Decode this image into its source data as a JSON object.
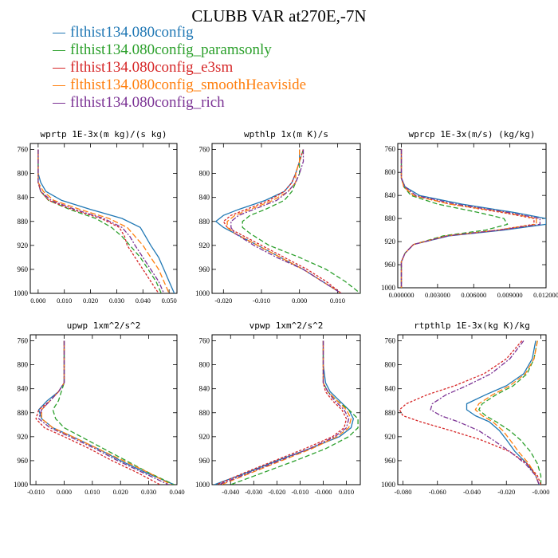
{
  "page": {
    "title": "CLUBB VAR at270E,-7N"
  },
  "legend": [
    {
      "name": "flthist134.080config",
      "color": "#1f77b4",
      "dash": ""
    },
    {
      "name": "flthist134.080config_paramsonly",
      "color": "#2ca02c",
      "dash": "6,3"
    },
    {
      "name": "flthist134.080config_e3sm",
      "color": "#d62728",
      "dash": "3,2"
    },
    {
      "name": "flthist134.080config_smoothHeaviside",
      "color": "#ff7f0e",
      "dash": "7,3"
    },
    {
      "name": "flthist134.080config_rich",
      "color": "#7b3294",
      "dash": "6,2,2,2"
    }
  ],
  "chart_data": [
    {
      "type": "line",
      "title": "wprtp  1E-3x(m kg)/(s kg)",
      "xlim": [
        -0.003,
        0.053
      ],
      "ylim": [
        1000,
        750
      ],
      "xticks": [
        0.0,
        0.01,
        0.02,
        0.03,
        0.04,
        0.05
      ],
      "xtick_labels": [
        "0.000",
        "0.010",
        "0.020",
        "0.030",
        "0.040",
        "0.050"
      ],
      "yticks": [
        760,
        800,
        840,
        880,
        920,
        960,
        1000
      ],
      "y": [
        760,
        780,
        800,
        815,
        830,
        845,
        860,
        875,
        890,
        905,
        920,
        940,
        960,
        980,
        1000
      ],
      "series": [
        {
          "name": "flthist134.080config",
          "values": [
            0.0,
            0.0,
            0.0,
            0.001,
            0.003,
            0.009,
            0.02,
            0.032,
            0.039,
            0.041,
            0.043,
            0.046,
            0.048,
            0.05,
            0.052
          ]
        },
        {
          "name": "flthist134.080config_paramsonly",
          "values": [
            0.0,
            0.0,
            0.0,
            0.0,
            0.001,
            0.004,
            0.012,
            0.022,
            0.028,
            0.032,
            0.035,
            0.039,
            0.042,
            0.045,
            0.047
          ]
        },
        {
          "name": "flthist134.080config_e3sm",
          "values": [
            0.0,
            0.0,
            0.0,
            0.0,
            0.001,
            0.004,
            0.013,
            0.024,
            0.031,
            0.033,
            0.034,
            0.037,
            0.04,
            0.043,
            0.046
          ]
        },
        {
          "name": "flthist134.080config_smoothHeaviside",
          "values": [
            0.0,
            0.0,
            0.0,
            0.0,
            0.002,
            0.006,
            0.016,
            0.027,
            0.034,
            0.037,
            0.04,
            0.043,
            0.046,
            0.048,
            0.05
          ]
        },
        {
          "name": "flthist134.080config_rich",
          "values": [
            0.0,
            0.0,
            0.0,
            0.0,
            0.001,
            0.005,
            0.014,
            0.025,
            0.032,
            0.035,
            0.037,
            0.04,
            0.043,
            0.046,
            0.048
          ]
        }
      ]
    },
    {
      "type": "line",
      "title": "wpthlp  1x(m K)/s",
      "xlim": [
        -0.023,
        0.016
      ],
      "ylim": [
        1000,
        750
      ],
      "xticks": [
        -0.02,
        -0.01,
        0.0,
        0.01
      ],
      "xtick_labels": [
        "-0.020",
        "-0.010",
        "0.000",
        "0.010"
      ],
      "yticks": [
        760,
        800,
        840,
        880,
        920,
        960,
        1000
      ],
      "y": [
        760,
        780,
        800,
        815,
        830,
        845,
        860,
        870,
        880,
        890,
        900,
        920,
        940,
        960,
        980,
        1000
      ],
      "series": [
        {
          "name": "flthist134.080config",
          "values": [
            0.0,
            0.0,
            -0.001,
            -0.002,
            -0.004,
            -0.009,
            -0.016,
            -0.02,
            -0.022,
            -0.02,
            -0.017,
            -0.011,
            -0.005,
            0.001,
            0.006,
            0.011
          ]
        },
        {
          "name": "flthist134.080config_paramsonly",
          "values": [
            0.001,
            0.0,
            0.0,
            -0.001,
            -0.002,
            -0.004,
            -0.009,
            -0.013,
            -0.015,
            -0.015,
            -0.013,
            -0.008,
            0.0,
            0.007,
            0.012,
            0.016
          ]
        },
        {
          "name": "flthist134.080config_e3sm",
          "values": [
            0.001,
            0.0,
            -0.001,
            -0.002,
            -0.004,
            -0.008,
            -0.014,
            -0.018,
            -0.02,
            -0.019,
            -0.016,
            -0.01,
            -0.004,
            0.002,
            0.007,
            0.011
          ]
        },
        {
          "name": "flthist134.080config_smoothHeaviside",
          "values": [
            0.0,
            0.0,
            -0.001,
            -0.001,
            -0.003,
            -0.007,
            -0.013,
            -0.017,
            -0.019,
            -0.019,
            -0.017,
            -0.011,
            -0.005,
            0.001,
            0.006,
            0.011
          ]
        },
        {
          "name": "flthist134.080config_rich",
          "values": [
            0.001,
            0.001,
            0.0,
            -0.001,
            -0.003,
            -0.006,
            -0.012,
            -0.016,
            -0.018,
            -0.018,
            -0.017,
            -0.012,
            -0.006,
            0.001,
            0.006,
            0.011
          ]
        }
      ]
    },
    {
      "type": "line",
      "title": "wprcp  1E-3x(m/s) (kg/kg)",
      "xlim": [
        -0.0003,
        0.012
      ],
      "ylim": [
        1000,
        750
      ],
      "xticks": [
        0.0,
        0.003,
        0.006,
        0.009,
        0.012
      ],
      "xtick_labels": [
        "0.000000",
        "0.003000",
        "0.006000",
        "0.009000",
        "0.012000"
      ],
      "yticks": [
        760,
        800,
        840,
        880,
        920,
        960,
        1000
      ],
      "y": [
        760,
        790,
        810,
        825,
        840,
        855,
        870,
        880,
        890,
        900,
        910,
        925,
        940,
        955,
        970,
        1000
      ],
      "series": [
        {
          "name": "flthist134.080config",
          "values": [
            0.0,
            0.0,
            0.0,
            0.0003,
            0.0015,
            0.005,
            0.0095,
            0.012,
            0.012,
            0.0085,
            0.004,
            0.001,
            0.0003,
            0.0,
            0.0,
            0.0
          ]
        },
        {
          "name": "flthist134.080config_paramsonly",
          "values": [
            0.0,
            0.0,
            0.0,
            0.0002,
            0.0008,
            0.003,
            0.0065,
            0.0085,
            0.0088,
            0.007,
            0.0035,
            0.001,
            0.0003,
            0.0,
            0.0,
            0.0
          ]
        },
        {
          "name": "flthist134.080config_e3sm",
          "values": [
            0.0,
            0.0,
            0.0,
            0.0002,
            0.001,
            0.004,
            0.0085,
            0.011,
            0.011,
            0.008,
            0.0038,
            0.001,
            0.0003,
            0.0,
            0.0,
            0.0
          ]
        },
        {
          "name": "flthist134.080config_smoothHeaviside",
          "values": [
            0.0,
            0.0,
            0.0,
            0.0002,
            0.001,
            0.004,
            0.0088,
            0.0112,
            0.0112,
            0.008,
            0.0038,
            0.001,
            0.0003,
            0.0,
            0.0,
            0.0
          ]
        },
        {
          "name": "flthist134.080config_rich",
          "values": [
            0.0,
            0.0,
            0.0,
            0.0003,
            0.0012,
            0.0045,
            0.009,
            0.0115,
            0.0115,
            0.0082,
            0.0039,
            0.001,
            0.0003,
            0.0,
            0.0,
            0.0
          ]
        }
      ]
    },
    {
      "type": "line",
      "title": "upwp  1xm^2/s^2",
      "xlim": [
        -0.012,
        0.04
      ],
      "ylim": [
        1000,
        750
      ],
      "xticks": [
        -0.01,
        0.0,
        0.01,
        0.02,
        0.03,
        0.04
      ],
      "xtick_labels": [
        "-0.010",
        "0.000",
        "0.010",
        "0.020",
        "0.030",
        "0.040"
      ],
      "yticks": [
        760,
        800,
        840,
        880,
        920,
        960,
        1000
      ],
      "y": [
        760,
        800,
        830,
        845,
        860,
        875,
        890,
        905,
        920,
        940,
        960,
        980,
        1000
      ],
      "series": [
        {
          "name": "flthist134.080config",
          "values": [
            0.0,
            0.0,
            0.0,
            -0.002,
            -0.006,
            -0.009,
            -0.008,
            -0.004,
            0.003,
            0.012,
            0.02,
            0.029,
            0.039
          ]
        },
        {
          "name": "flthist134.080config_paramsonly",
          "values": [
            0.0,
            0.0,
            0.0,
            -0.001,
            -0.002,
            -0.004,
            -0.003,
            0.0,
            0.006,
            0.014,
            0.022,
            0.03,
            0.039
          ]
        },
        {
          "name": "flthist134.080config_e3sm",
          "values": [
            0.0,
            0.0,
            0.0,
            -0.002,
            -0.005,
            -0.009,
            -0.01,
            -0.007,
            0.0,
            0.009,
            0.017,
            0.026,
            0.034
          ]
        },
        {
          "name": "flthist134.080config_smoothHeaviside",
          "values": [
            0.0,
            0.0,
            0.0,
            -0.002,
            -0.005,
            -0.008,
            -0.008,
            -0.004,
            0.003,
            0.012,
            0.021,
            0.03,
            0.038
          ]
        },
        {
          "name": "flthist134.080config_rich",
          "values": [
            0.0,
            0.0,
            0.0,
            -0.002,
            -0.005,
            -0.008,
            -0.009,
            -0.005,
            0.002,
            0.011,
            0.019,
            0.028,
            0.037
          ]
        }
      ]
    },
    {
      "type": "line",
      "title": "vpwp  1xm^2/s^2",
      "xlim": [
        -0.048,
        0.016
      ],
      "ylim": [
        1000,
        750
      ],
      "xticks": [
        -0.04,
        -0.03,
        -0.02,
        -0.01,
        0.0,
        0.01
      ],
      "xtick_labels": [
        "-0.040",
        "-0.030",
        "-0.020",
        "-0.010",
        "-0.000",
        "0.010"
      ],
      "yticks": [
        760,
        800,
        840,
        880,
        920,
        960,
        1000
      ],
      "y": [
        760,
        800,
        830,
        845,
        860,
        875,
        890,
        905,
        920,
        940,
        960,
        980,
        1000
      ],
      "series": [
        {
          "name": "flthist134.080config",
          "values": [
            0.0,
            0.0,
            0.001,
            0.003,
            0.007,
            0.011,
            0.013,
            0.012,
            0.007,
            -0.006,
            -0.02,
            -0.033,
            -0.047
          ]
        },
        {
          "name": "flthist134.080config_paramsonly",
          "values": [
            0.0,
            0.0,
            0.0,
            0.002,
            0.006,
            0.011,
            0.015,
            0.015,
            0.011,
            0.001,
            -0.012,
            -0.026,
            -0.04
          ]
        },
        {
          "name": "flthist134.080config_e3sm",
          "values": [
            0.0,
            0.0,
            0.0,
            0.001,
            0.004,
            0.008,
            0.01,
            0.009,
            0.004,
            -0.008,
            -0.021,
            -0.034,
            -0.046
          ]
        },
        {
          "name": "flthist134.080config_smoothHeaviside",
          "values": [
            0.0,
            0.0,
            0.0,
            0.002,
            0.006,
            0.01,
            0.012,
            0.011,
            0.006,
            -0.005,
            -0.018,
            -0.031,
            -0.044
          ]
        },
        {
          "name": "flthist134.080config_rich",
          "values": [
            0.0,
            0.0,
            0.0,
            0.002,
            0.005,
            0.009,
            0.011,
            0.01,
            0.005,
            -0.006,
            -0.019,
            -0.032,
            -0.045
          ]
        }
      ]
    },
    {
      "type": "line",
      "title": "rtpthlp  1E-3x(kg K)/kg",
      "xlim": [
        -0.083,
        0.003
      ],
      "ylim": [
        1000,
        750
      ],
      "xticks": [
        -0.08,
        -0.06,
        -0.04,
        -0.02,
        0.0
      ],
      "xtick_labels": [
        "-0.080",
        "-0.060",
        "-0.040",
        "-0.020",
        "-0.000"
      ],
      "yticks": [
        760,
        800,
        840,
        880,
        920,
        960,
        1000
      ],
      "y": [
        760,
        790,
        815,
        835,
        850,
        865,
        875,
        885,
        895,
        910,
        925,
        945,
        965,
        985,
        1000
      ],
      "series": [
        {
          "name": "flthist134.080config",
          "values": [
            -0.003,
            -0.005,
            -0.01,
            -0.02,
            -0.032,
            -0.043,
            -0.043,
            -0.038,
            -0.03,
            -0.024,
            -0.02,
            -0.015,
            -0.008,
            -0.003,
            -0.001
          ]
        },
        {
          "name": "flthist134.080config_paramsonly",
          "values": [
            -0.002,
            -0.004,
            -0.008,
            -0.016,
            -0.026,
            -0.034,
            -0.036,
            -0.032,
            -0.026,
            -0.018,
            -0.012,
            -0.006,
            -0.002,
            0.0,
            0.0
          ]
        },
        {
          "name": "flthist134.080config_e3sm",
          "values": [
            -0.011,
            -0.02,
            -0.033,
            -0.05,
            -0.066,
            -0.078,
            -0.082,
            -0.08,
            -0.07,
            -0.052,
            -0.035,
            -0.018,
            -0.008,
            -0.002,
            0.0
          ]
        },
        {
          "name": "flthist134.080config_smoothHeaviside",
          "values": [
            -0.002,
            -0.004,
            -0.009,
            -0.018,
            -0.028,
            -0.036,
            -0.038,
            -0.034,
            -0.028,
            -0.022,
            -0.018,
            -0.013,
            -0.007,
            -0.003,
            -0.001
          ]
        },
        {
          "name": "flthist134.080config_rich",
          "values": [
            -0.01,
            -0.018,
            -0.029,
            -0.043,
            -0.055,
            -0.063,
            -0.064,
            -0.058,
            -0.048,
            -0.036,
            -0.028,
            -0.018,
            -0.009,
            -0.003,
            -0.001
          ]
        }
      ]
    }
  ]
}
